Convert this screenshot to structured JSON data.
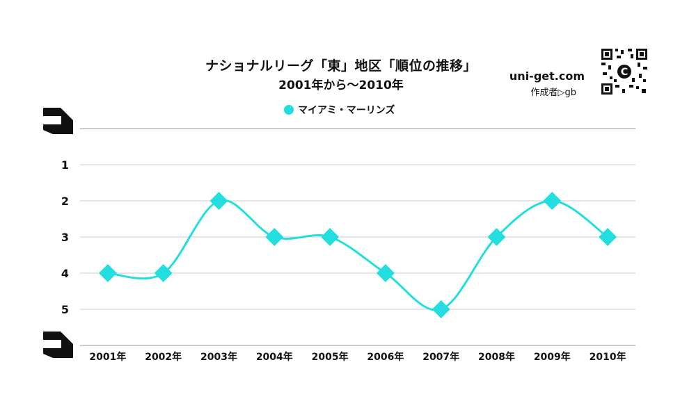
{
  "header": {
    "title": "ナショナルリーグ「東」地区「順位の推移」",
    "subtitle": "2001年から～2010年",
    "brand": "uni-get.com",
    "author": "作成者▷gb"
  },
  "colors": {
    "series": "#22dede",
    "grid": "#cccccc",
    "text": "#111111"
  },
  "icons": {
    "qr": "qr-code-icon",
    "logo": "copyright-logo-icon",
    "legend": "circle-marker-icon",
    "axis_cap": "axis-corner-icon"
  },
  "chart_data": {
    "type": "line",
    "categories": [
      "2001年",
      "2002年",
      "2003年",
      "2004年",
      "2005年",
      "2006年",
      "2007年",
      "2008年",
      "2009年",
      "2010年"
    ],
    "series": [
      {
        "name": "マイアミ・マーリンズ",
        "values": [
          4,
          4,
          2,
          3,
          3,
          4,
          5,
          3,
          2,
          3
        ],
        "marker": "diamond",
        "smooth": true
      }
    ],
    "yticks": [
      1,
      2,
      3,
      4,
      5
    ],
    "ylim": [
      0,
      6
    ],
    "y_inverted": true,
    "grid": true,
    "legend_position": "top-center"
  }
}
